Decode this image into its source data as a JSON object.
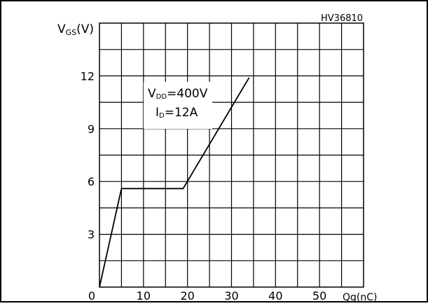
{
  "figure_code": "HV36810",
  "chart_data": {
    "type": "line",
    "xlabel": "Qg(nC)",
    "ylabel": {
      "main": "V",
      "sub": "GS",
      "unit": "(V)"
    },
    "xlim": [
      0,
      60
    ],
    "ylim": [
      0,
      15
    ],
    "x_ticks": [
      {
        "value": 0,
        "label": "0"
      },
      {
        "value": 10,
        "label": "10"
      },
      {
        "value": 20,
        "label": "20"
      },
      {
        "value": 30,
        "label": "30"
      },
      {
        "value": 40,
        "label": "40"
      },
      {
        "value": 50,
        "label": "50"
      }
    ],
    "y_ticks": [
      {
        "value": 3,
        "label": "3"
      },
      {
        "value": 6,
        "label": "6"
      },
      {
        "value": 9,
        "label": "9"
      },
      {
        "value": 12,
        "label": "12"
      }
    ],
    "grid": true,
    "grid_x_step": 5,
    "grid_y_step": 1.5,
    "series": [
      {
        "x": [
          0,
          5,
          19,
          34
        ],
        "y": [
          0,
          5.6,
          5.6,
          11.9
        ]
      }
    ],
    "annotations": [
      {
        "main": "V",
        "sub": "DD",
        "rest": "=400V"
      },
      {
        "main": "I",
        "sub": "D",
        "rest": "=12A"
      }
    ]
  }
}
